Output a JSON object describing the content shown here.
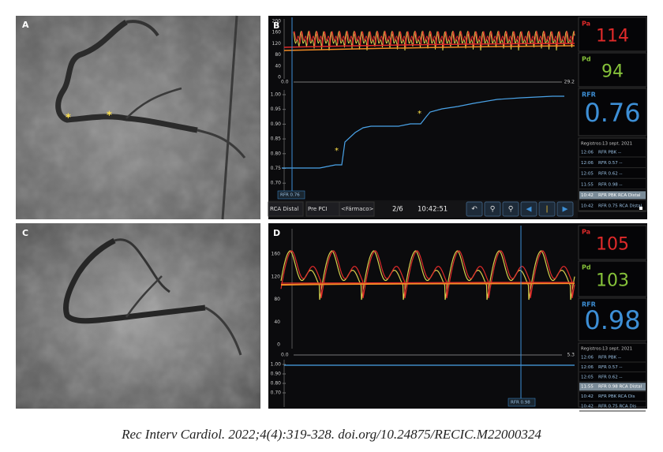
{
  "figure": {
    "caption": "Rec Interv Cardiol. 2022;4(4):319-328. doi.org/10.24875/RECIC.M22000324",
    "panels": {
      "a": {
        "label": "A"
      },
      "b": {
        "label": "B",
        "pressure_ticks": [
          "200",
          "160",
          "120",
          "80",
          "40",
          "0"
        ],
        "time_start": "0.0",
        "time_end": "29.2",
        "rfr_ticks": [
          "1.00",
          "0.95",
          "0.90",
          "0.85",
          "0.80",
          "0.75",
          "0.70"
        ],
        "cursor_label": "RFR 0.76",
        "pa": {
          "label": "Pa",
          "value": "114"
        },
        "pd": {
          "label": "Pd",
          "value": "94"
        },
        "rfr": {
          "label": "RFR",
          "value": "0.76"
        },
        "registry": {
          "title": "Registros:",
          "date": "13 sept. 2021",
          "highlight": 4,
          "rows": [
            {
              "time": "12:06",
              "text": "RFR  PBK  --"
            },
            {
              "time": "12:06",
              "text": "RFR  0.57  --"
            },
            {
              "time": "12:05",
              "text": "RFR  0.62  --"
            },
            {
              "time": "11:55",
              "text": "RFR  0.98  --"
            },
            {
              "time": "10:42",
              "text": "RFR  PBK  RCA Distal"
            },
            {
              "time": "10:42",
              "text": "RFR  0.75  RCA Distal"
            }
          ]
        },
        "toolbar": {
          "vessel": "RCA Distal",
          "phase": "Pre PCI",
          "drug": "<Fármaco>",
          "index": "2/6",
          "time": "10:42:51"
        }
      },
      "c": {
        "label": "C"
      },
      "d": {
        "label": "D",
        "pressure_ticks": [
          "160",
          "120",
          "80",
          "40",
          "0"
        ],
        "time_start": "0.0",
        "time_end": "5.3",
        "rfr_ticks": [
          "1.00",
          "0.90",
          "0.80",
          "0.70"
        ],
        "cursor_label": "RFR 0.98",
        "pa": {
          "label": "Pa",
          "value": "105"
        },
        "pd": {
          "label": "Pd",
          "value": "103"
        },
        "rfr": {
          "label": "RFR",
          "value": "0.98"
        },
        "registry": {
          "title": "Registros:",
          "date": "13 sept. 2021",
          "highlight": 3,
          "rows": [
            {
              "time": "12:06",
              "text": "RFR  PBK  --"
            },
            {
              "time": "12:06",
              "text": "RFR  0.57  --"
            },
            {
              "time": "12:05",
              "text": "RFR  0.62  --"
            },
            {
              "time": "11:55",
              "text": "RFR  0.98  RCA Distal"
            },
            {
              "time": "10:42",
              "text": "RFR  PBK  RCA Dis"
            },
            {
              "time": "10:42",
              "text": "RFR  0.75  RCA Dis"
            }
          ]
        }
      }
    }
  }
}
